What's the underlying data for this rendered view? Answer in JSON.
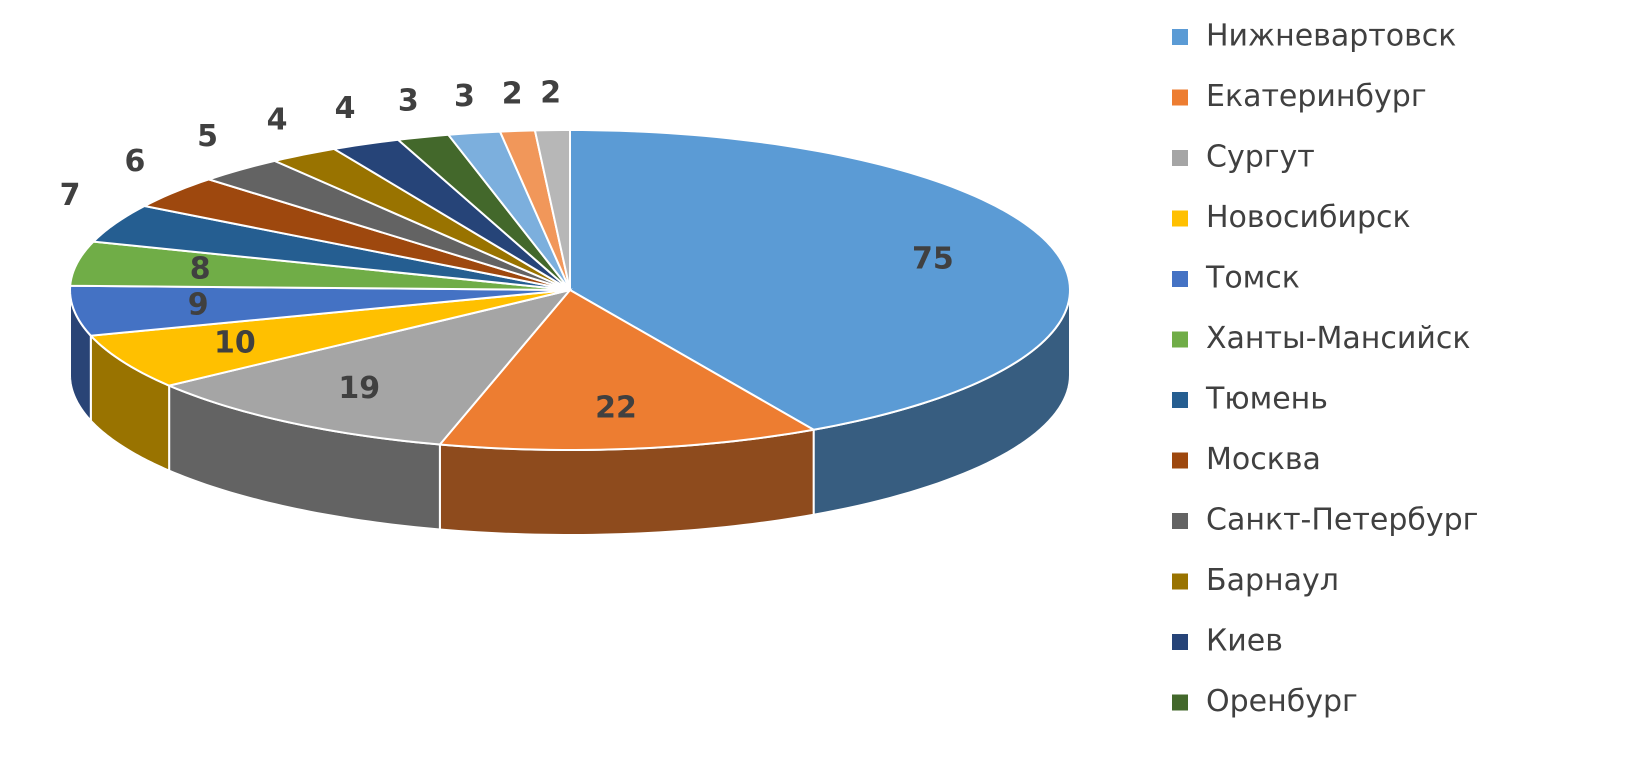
{
  "chart_data": {
    "type": "pie",
    "categories": [
      "Нижневартовск",
      "Екатеринбург",
      "Сургут",
      "Новосибирск",
      "Томск",
      "Ханты-Мансийск",
      "Тюмень",
      "Москва",
      "Санкт-Петербург",
      "Барнаул",
      "Киев",
      "Оренбург",
      null,
      null,
      null
    ],
    "values": [
      75,
      22,
      19,
      10,
      9,
      8,
      7,
      6,
      5,
      4,
      4,
      3,
      3,
      2,
      2
    ],
    "colors": [
      "#5b9bd5",
      "#ed7d31",
      "#a5a5a5",
      "#ffc000",
      "#4472c4",
      "#70ad47",
      "#255e91",
      "#9e480e",
      "#636363",
      "#997300",
      "#264478",
      "#43682b",
      "#7cafdd",
      "#f1975a",
      "#b7b7b7"
    ],
    "legend": "right"
  }
}
